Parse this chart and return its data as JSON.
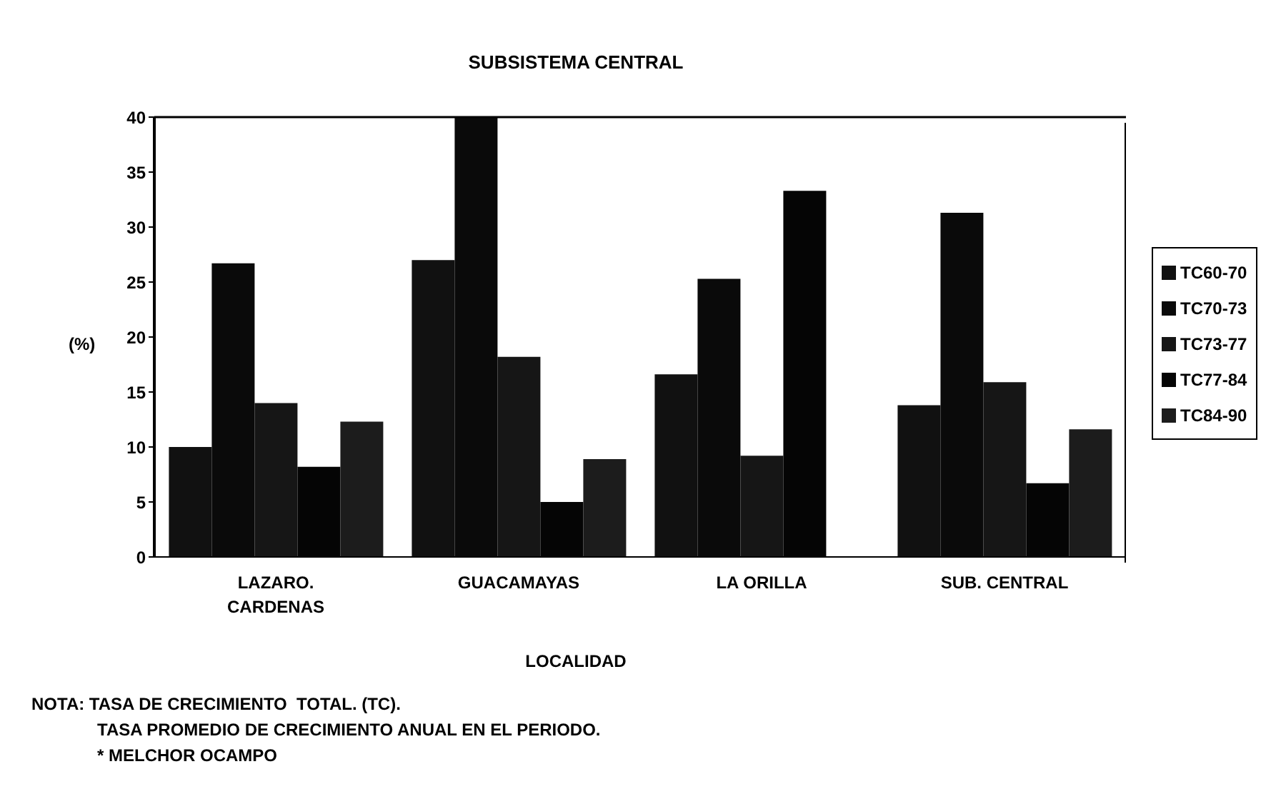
{
  "chart_data": {
    "type": "bar",
    "title": "SUBSISTEMA CENTRAL",
    "xlabel": "LOCALIDAD",
    "ylabel": "(%)",
    "categories": [
      "LAZARO. CARDENAS",
      "GUACAMAYAS",
      "LA ORILLA",
      "SUB. CENTRAL"
    ],
    "series": [
      {
        "name": "TC60-70",
        "color": "#111111",
        "values": [
          10,
          27,
          16.6,
          13.8
        ]
      },
      {
        "name": "TC70-73",
        "color": "#0a0a0a",
        "values": [
          26.7,
          40,
          25.3,
          31.3
        ]
      },
      {
        "name": "TC73-77",
        "color": "#161616",
        "values": [
          14,
          18.2,
          9.2,
          15.9
        ]
      },
      {
        "name": "TC77-84",
        "color": "#050505",
        "values": [
          8.2,
          5,
          33.3,
          6.7
        ]
      },
      {
        "name": "TC84-90",
        "color": "#1c1c1c",
        "values": [
          12.3,
          8.9,
          null,
          11.6
        ]
      }
    ],
    "ylim": [
      0,
      40
    ],
    "yticks": [
      0,
      5,
      10,
      15,
      20,
      25,
      30,
      35,
      40
    ],
    "grid": false,
    "legend": "right",
    "annotations": [
      "NOTA: TASA DE CRECIMIENTO  TOTAL. (TC).",
      "TASA PROMEDIO DE CRECIMIENTO ANUAL EN EL PERIODO.",
      "* MELCHOR OCAMPO"
    ]
  }
}
